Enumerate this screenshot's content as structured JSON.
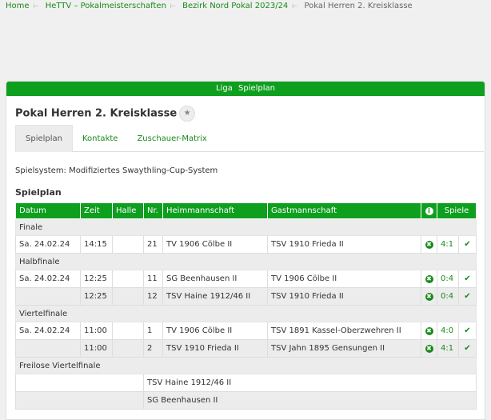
{
  "breadcrumb": [
    "Home",
    "HeTTV – Pokalmeisterschaften",
    "Bezirk Nord Pokal 2023/24",
    "Pokal Herren 2. Kreisklasse"
  ],
  "panel_header": "Liga Spielplan",
  "title": "Pokal Herren 2. Kreisklasse",
  "tabs": [
    "Spielplan",
    "Kontakte",
    "Zuschauer-Matrix"
  ],
  "spielsystem": "Spielsystem: Modifiziertes Swaythling-Cup-System",
  "section": "Spielplan",
  "columns": [
    "Datum",
    "Zeit",
    "Halle",
    "Nr.",
    "Heimmannschaft",
    "Gastmannschaft",
    "Spiele"
  ],
  "groups": [
    {
      "name": "Finale",
      "rows": [
        {
          "datum": "Sa. 24.02.24",
          "zeit": "14:15",
          "halle": "",
          "nr": "21",
          "heim": "TV 1906 Cölbe II",
          "gast": "TSV 1910 Frieda II",
          "score": "4:1"
        }
      ]
    },
    {
      "name": "Halbfinale",
      "rows": [
        {
          "datum": "Sa. 24.02.24",
          "zeit": "12:25",
          "halle": "",
          "nr": "11",
          "heim": "SG Beenhausen II",
          "gast": "TV 1906 Cölbe II",
          "score": "0:4"
        },
        {
          "datum": "",
          "zeit": "12:25",
          "halle": "",
          "nr": "12",
          "heim": "TSV Haine 1912/46 II",
          "gast": "TSV 1910 Frieda II",
          "score": "0:4"
        }
      ]
    },
    {
      "name": "Viertelfinale",
      "rows": [
        {
          "datum": "Sa. 24.02.24",
          "zeit": "11:00",
          "halle": "",
          "nr": "1",
          "heim": "TV 1906 Cölbe II",
          "gast": "TSV 1891 Kassel-Oberzwehren II",
          "score": "4:0"
        },
        {
          "datum": "",
          "zeit": "11:00",
          "halle": "",
          "nr": "2",
          "heim": "TSV 1910 Frieda II",
          "gast": "TSV Jahn 1895 Gensungen II",
          "score": "4:1"
        }
      ]
    }
  ],
  "freilose": {
    "name": "Freilose Viertelfinale",
    "teams": [
      "TSV Haine 1912/46 II",
      "SG Beenhausen II"
    ]
  },
  "colors": {
    "accent": "#0f9f1f",
    "link": "#1a8a1a"
  }
}
